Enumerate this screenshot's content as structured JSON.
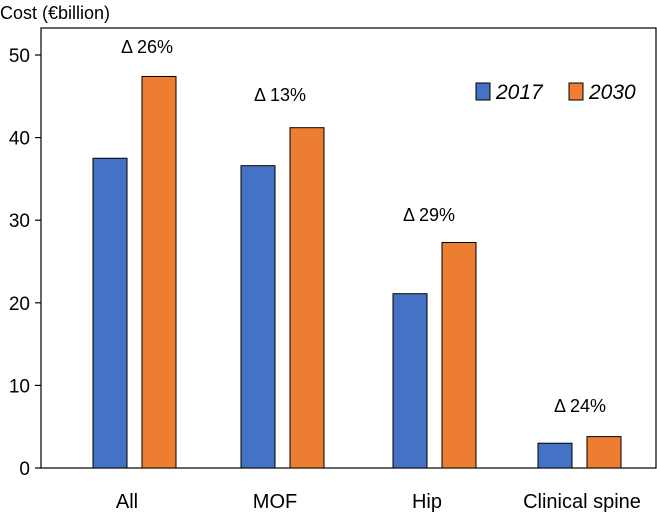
{
  "chart_data": {
    "type": "bar",
    "title": "",
    "ylabel": "Cost (€billion)",
    "xlabel": "",
    "ylim": [
      0,
      50
    ],
    "yticks": [
      0,
      10,
      20,
      30,
      40,
      50
    ],
    "categories": [
      "All",
      "MOF",
      "Hip",
      "Clinical spine"
    ],
    "series": [
      {
        "name": "2017",
        "color": "#4472C4",
        "values": [
          37.5,
          36.6,
          21.1,
          3.0
        ]
      },
      {
        "name": "2030",
        "color": "#ED7D31",
        "values": [
          47.4,
          41.2,
          27.3,
          3.8
        ]
      }
    ],
    "annotations": [
      "Δ 26%",
      "Δ 13%",
      "Δ 29%",
      "Δ 24%"
    ],
    "legend_position": "top-right"
  }
}
